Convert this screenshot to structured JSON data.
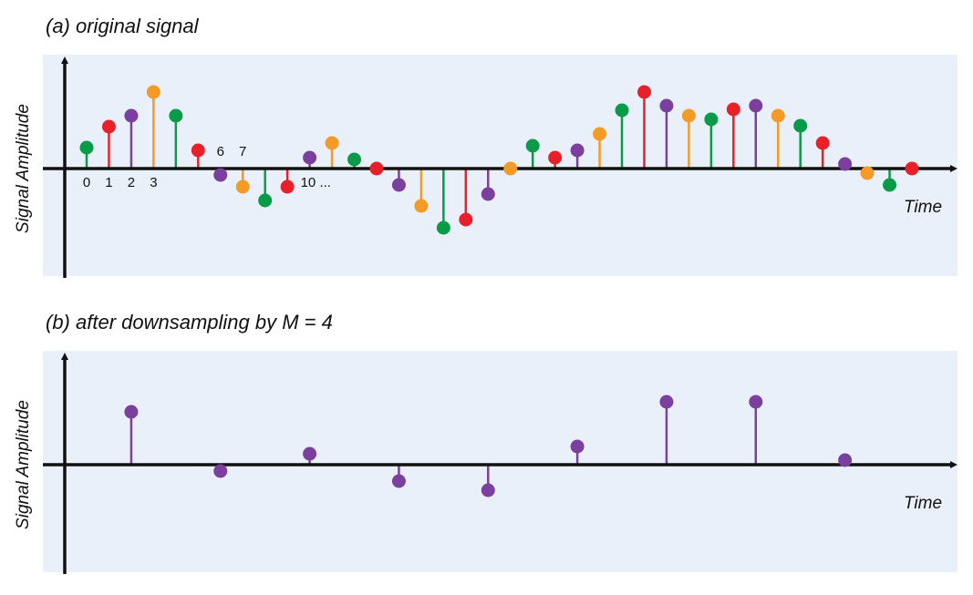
{
  "chart_data": [
    {
      "type": "stem",
      "title": "(a) original signal",
      "ylabel": "Signal Amplitude",
      "xlabel": "Time",
      "categories": [
        "0",
        "1",
        "2",
        "3",
        null,
        null,
        "6",
        "7",
        null,
        null,
        "10 ...",
        null,
        null,
        null,
        null,
        null,
        null,
        null,
        null,
        null,
        null,
        null,
        null,
        null,
        null,
        null,
        null,
        null,
        null,
        null,
        null,
        null,
        null,
        null,
        null,
        null,
        null,
        null
      ],
      "values": [
        2.3,
        4.6,
        5.8,
        8.4,
        5.8,
        2.0,
        -0.7,
        -2.0,
        -3.5,
        -2.0,
        1.2,
        2.8,
        1.0,
        0,
        -1.8,
        -4.1,
        -6.5,
        -5.6,
        -2.8,
        0,
        2.5,
        1.2,
        2.0,
        3.8,
        6.4,
        8.4,
        6.9,
        5.8,
        5.4,
        6.5,
        6.9,
        5.8,
        4.7,
        2.8,
        0.5,
        -0.5,
        -1.8,
        0
      ],
      "colors": [
        "#0a9b48",
        "#e8202a",
        "#7b3f9e",
        "#f39a27"
      ],
      "ylim": [
        -12,
        12
      ]
    },
    {
      "type": "stem",
      "title": "(b) after downsampling by M = 4",
      "ylabel": "Signal Amplitude",
      "xlabel": "Time",
      "x": [
        2,
        6,
        10,
        14,
        18,
        22,
        26,
        30,
        34
      ],
      "values": [
        5.8,
        -0.7,
        1.2,
        -1.8,
        -2.8,
        2.0,
        6.9,
        6.9,
        0.5
      ],
      "color": "#7b3f9e",
      "xlim": [
        0,
        37
      ],
      "ylim": [
        -12,
        12
      ]
    }
  ]
}
